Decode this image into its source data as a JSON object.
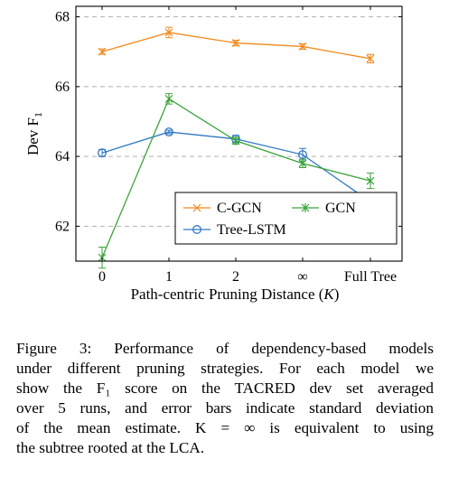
{
  "chart_data": {
    "type": "line",
    "categories": [
      "0",
      "1",
      "2",
      "∞",
      "Full Tree"
    ],
    "ylabel_main": "Dev F",
    "ylabel_sub": "1",
    "xlabel_main": "Path-centric Pruning Distance (",
    "xlabel_var": "K",
    "xlabel_end": ")",
    "ylim": [
      61.0,
      68.3
    ],
    "yticks": [
      62,
      64,
      66,
      68
    ],
    "grid": "horizontal-dashed",
    "legend_position": "bottom-right",
    "series": [
      {
        "name": "C-GCN",
        "color": "#f28a1e",
        "marker": "x",
        "values": [
          67.0,
          67.55,
          67.25,
          67.15,
          66.8
        ],
        "errors": [
          0.08,
          0.15,
          0.08,
          0.08,
          0.12
        ]
      },
      {
        "name": "GCN",
        "color": "#3aa33a",
        "marker": "asterisk",
        "values": [
          61.1,
          65.65,
          64.45,
          63.8,
          63.3
        ],
        "errors": [
          0.3,
          0.15,
          0.1,
          0.12,
          0.22
        ]
      },
      {
        "name": "Tree-LSTM",
        "color": "#2f78c4",
        "marker": "circle",
        "values": [
          64.1,
          64.7,
          64.5,
          64.05,
          62.7
        ],
        "errors": [
          0.1,
          0.05,
          0.1,
          0.18,
          0.06
        ]
      }
    ]
  },
  "caption": {
    "lines": [
      "Figure 3:  Performance of dependency-based models",
      "under different pruning strategies. For each model we",
      "show the F₁ score on the TACRED dev set averaged",
      "over 5 runs, and error bars indicate standard deviation",
      "of the mean estimate.  K = ∞ is equivalent to using",
      "the subtree rooted at the LCA."
    ]
  }
}
